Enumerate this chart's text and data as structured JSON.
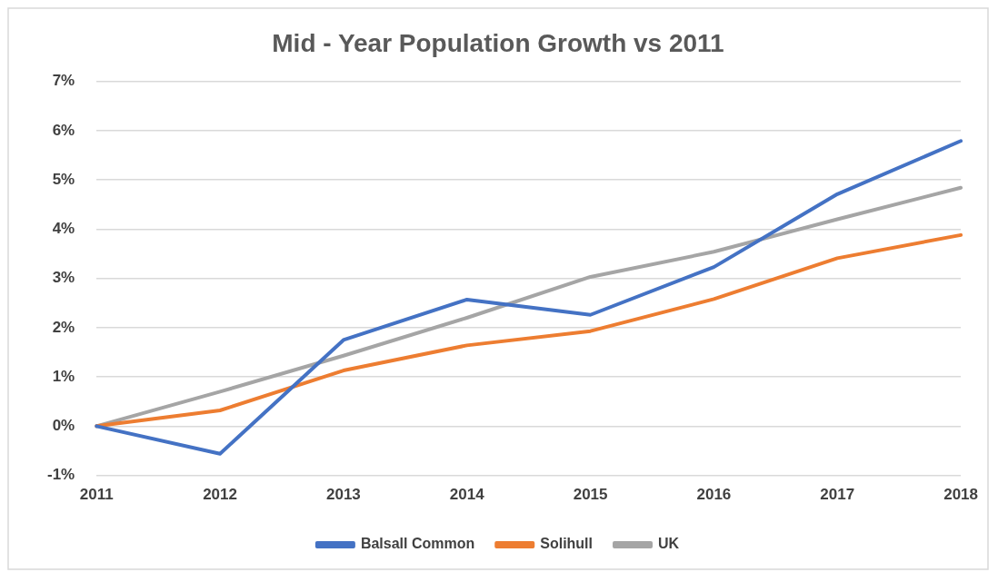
{
  "chart_data": {
    "type": "line",
    "title": "Mid - Year Population Growth vs 2011",
    "categories": [
      "2011",
      "2012",
      "2013",
      "2014",
      "2015",
      "2016",
      "2017",
      "2018"
    ],
    "series": [
      {
        "name": "Balsall Common",
        "color": "#4472c4",
        "values": [
          0,
          -0.56,
          1.75,
          2.57,
          2.26,
          3.23,
          4.71,
          5.79
        ]
      },
      {
        "name": "Solihull",
        "color": "#ed7d31",
        "values": [
          0,
          0.32,
          1.13,
          1.64,
          1.93,
          2.58,
          3.41,
          3.88
        ]
      },
      {
        "name": "UK",
        "color": "#a5a5a5",
        "values": [
          0,
          0.7,
          1.43,
          2.2,
          3.03,
          3.54,
          4.2,
          4.84
        ]
      }
    ],
    "ylim": [
      -1,
      7
    ],
    "yticks": [
      {
        "value": -1,
        "label": "-1%"
      },
      {
        "value": 0,
        "label": "0%"
      },
      {
        "value": 1,
        "label": "1%"
      },
      {
        "value": 2,
        "label": "2%"
      },
      {
        "value": 3,
        "label": "3%"
      },
      {
        "value": 4,
        "label": "4%"
      },
      {
        "value": 5,
        "label": "5%"
      },
      {
        "value": 6,
        "label": "6%"
      },
      {
        "value": 7,
        "label": "7%"
      }
    ],
    "grid": "y",
    "legend": "bottom",
    "marker": "none",
    "line_style": "solid"
  }
}
